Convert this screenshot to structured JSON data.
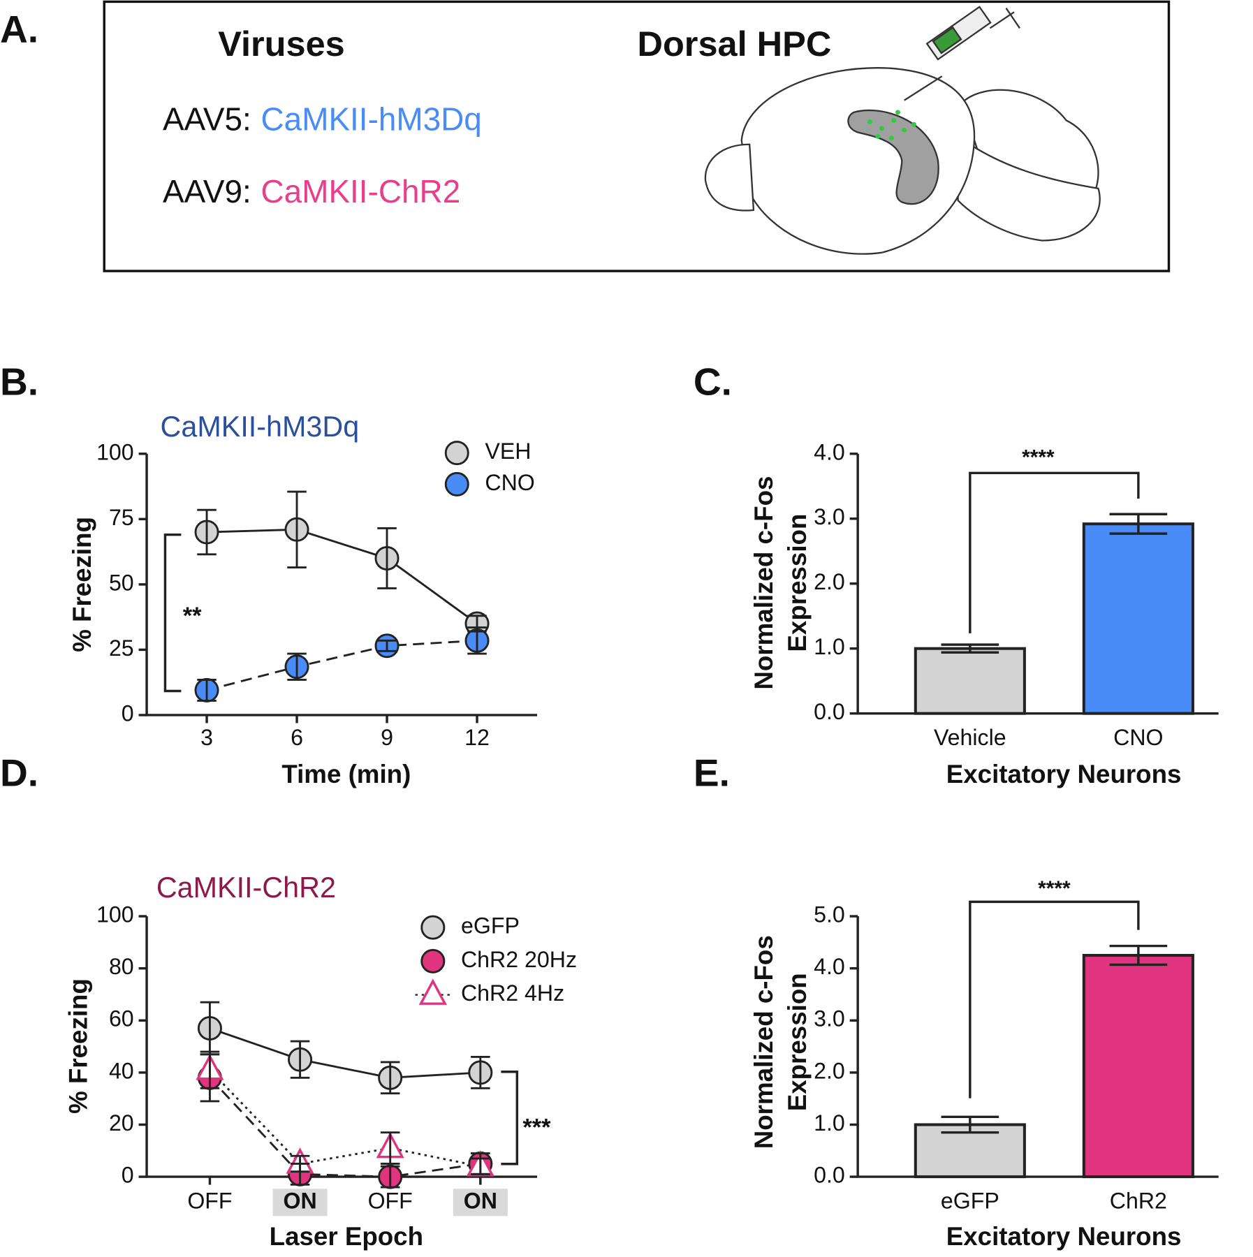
{
  "panel_a": {
    "panel": "A.",
    "headings": [
      "Viruses",
      "Dorsal HPC"
    ],
    "constructs": [
      {
        "prefix": "AAV5:",
        "name": "CaMKII-hM3Dq",
        "color": "#4a8cf7"
      },
      {
        "prefix": "AAV9:",
        "name": "CaMKII-ChR2",
        "color": "#e83e8c"
      }
    ]
  },
  "chart_data": [
    {
      "type": "line",
      "panel": "B.",
      "title": "CaMKII-hM3Dq",
      "title_color": "#2b4f9a",
      "xlabel": "Time (min)",
      "ylabel": "% Freezing",
      "x": [
        3,
        6,
        9,
        12
      ],
      "xlim": [
        1,
        14
      ],
      "xticks": [
        3,
        6,
        9,
        12
      ],
      "ylim": [
        0,
        100
      ],
      "yticks": [
        0,
        25,
        50,
        75,
        100
      ],
      "grid": false,
      "series": [
        {
          "name": "VEH",
          "color": "#d3d3d3",
          "linestyle": "solid",
          "marker": "circle",
          "values": [
            70,
            71,
            60,
            35
          ],
          "errors": [
            8.5,
            14.5,
            11.5,
            3
          ]
        },
        {
          "name": "CNO",
          "color": "#4a8cf7",
          "linestyle": "dashed",
          "marker": "circle",
          "values": [
            9.5,
            18.5,
            26.5,
            28.5
          ],
          "errors": [
            4,
            5,
            2,
            5
          ]
        }
      ],
      "annotation": "**"
    },
    {
      "type": "bar",
      "panel": "C.",
      "xlabel": "Excitatory Neurons",
      "ylabel": [
        "Normalized c-Fos",
        "Expression"
      ],
      "categories": [
        "Vehicle",
        "CNO"
      ],
      "values": [
        1.0,
        2.92
      ],
      "errors": [
        0.06,
        0.15
      ],
      "colors": [
        "#d3d3d3",
        "#4a8cf7"
      ],
      "ylim": [
        0,
        4
      ],
      "yticks": [
        {
          "value": 0,
          "label": "0.0"
        },
        {
          "value": 1,
          "label": "1.0"
        },
        {
          "value": 2,
          "label": "2.0"
        },
        {
          "value": 3,
          "label": "3.0"
        },
        {
          "value": 4,
          "label": "4.0"
        }
      ],
      "grid": false,
      "annotation": "****"
    },
    {
      "type": "line",
      "panel": "D.",
      "title": "CaMKII-ChR2",
      "title_color": "#8b1a4a",
      "xlabel": "Laser Epoch",
      "ylabel": "% Freezing",
      "categories": [
        "OFF",
        "ON",
        "OFF",
        "ON"
      ],
      "category_highlight": [
        false,
        true,
        false,
        true
      ],
      "ylim": [
        0,
        100
      ],
      "yticks": [
        0,
        20,
        40,
        60,
        80,
        100
      ],
      "grid": false,
      "series": [
        {
          "name": "eGFP",
          "color": "#d3d3d3",
          "linestyle": "solid",
          "marker": "circle",
          "values": [
            57,
            45,
            38,
            40
          ],
          "errors": [
            10,
            7,
            6,
            6
          ]
        },
        {
          "name": "ChR2 20Hz",
          "color": "#e0357e",
          "linestyle": "dashed",
          "marker": "circle",
          "values": [
            38,
            1,
            0,
            5
          ],
          "errors": [
            9,
            4,
            4,
            4
          ]
        },
        {
          "name": "ChR2 4Hz",
          "color": "#e0357e",
          "linestyle": "dotted",
          "marker": "triangle",
          "values": [
            41,
            5,
            11,
            4
          ],
          "errors": [
            7,
            3,
            6,
            3
          ]
        }
      ],
      "annotation": "***"
    },
    {
      "type": "bar",
      "panel": "E.",
      "xlabel": "Excitatory Neurons",
      "ylabel": [
        "Normalized c-Fos",
        "Expression"
      ],
      "categories": [
        "eGFP",
        "ChR2"
      ],
      "values": [
        1.0,
        4.25
      ],
      "errors": [
        0.15,
        0.18
      ],
      "colors": [
        "#d3d3d3",
        "#e0357e"
      ],
      "ylim": [
        0,
        5
      ],
      "yticks": [
        {
          "value": 0,
          "label": "0.0"
        },
        {
          "value": 1,
          "label": "1.0"
        },
        {
          "value": 2,
          "label": "2.0"
        },
        {
          "value": 3,
          "label": "3.0"
        },
        {
          "value": 4,
          "label": "4.0"
        },
        {
          "value": 5,
          "label": "5.0"
        }
      ],
      "grid": false,
      "annotation": "****"
    }
  ]
}
